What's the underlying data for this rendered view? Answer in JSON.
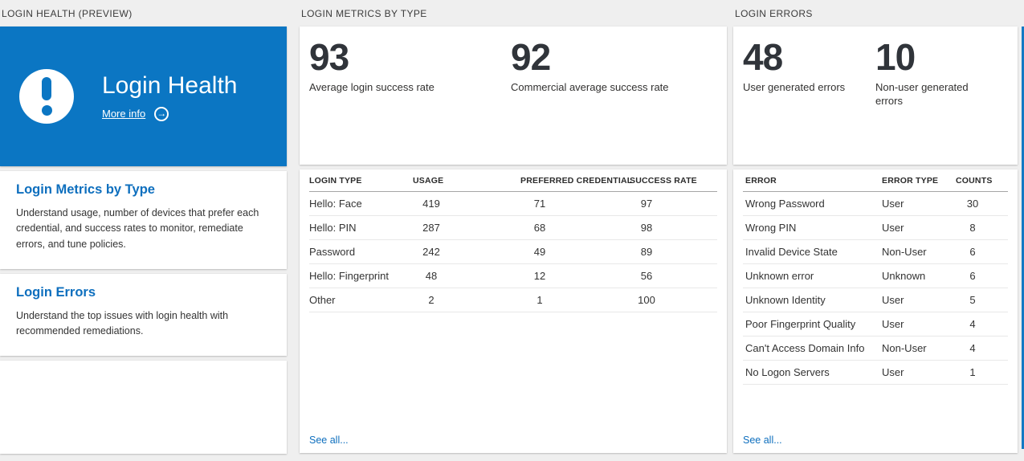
{
  "theme": {
    "accent": "#0b76c3",
    "link_blue": "#0e6fbe",
    "background": "#efefef"
  },
  "login_health_panel": {
    "header": "LOGIN HEALTH (PREVIEW)",
    "hero": {
      "title": "Login Health",
      "more_info_label": "More info",
      "icon": "exclamation-circle-icon"
    },
    "links": [
      {
        "title": "Login Metrics by Type",
        "description": "Understand usage, number of devices that prefer each credential, and success rates to monitor, remediate errors, and tune policies."
      },
      {
        "title": "Login Errors",
        "description": "Understand the top issues with login health with recommended remediations."
      }
    ]
  },
  "metrics_panel": {
    "header": "LOGIN METRICS BY TYPE",
    "stats": [
      {
        "value": "93",
        "label": "Average login success rate"
      },
      {
        "value": "92",
        "label": "Commercial average success rate"
      }
    ],
    "table": {
      "columns": [
        "LOGIN TYPE",
        "USAGE",
        "PREFERRED CREDENTIAL",
        "SUCCESS RATE"
      ],
      "rows": [
        [
          "Hello: Face",
          "419",
          "71",
          "97"
        ],
        [
          "Hello: PIN",
          "287",
          "68",
          "98"
        ],
        [
          "Password",
          "242",
          "49",
          "89"
        ],
        [
          "Hello: Fingerprint",
          "48",
          "12",
          "56"
        ],
        [
          "Other",
          "2",
          "1",
          "100"
        ]
      ]
    },
    "see_all_label": "See all..."
  },
  "errors_panel": {
    "header": "LOGIN ERRORS",
    "stats": [
      {
        "value": "48",
        "label": "User generated errors"
      },
      {
        "value": "10",
        "label": "Non-user generated errors"
      }
    ],
    "table": {
      "columns": [
        "ERROR",
        "ERROR TYPE",
        "COUNTS"
      ],
      "rows": [
        [
          "Wrong Password",
          "User",
          "30"
        ],
        [
          "Wrong PIN",
          "User",
          "8"
        ],
        [
          "Invalid Device State",
          "Non-User",
          "6"
        ],
        [
          "Unknown error",
          "Unknown",
          "6"
        ],
        [
          "Unknown Identity",
          "User",
          "5"
        ],
        [
          "Poor Fingerprint Quality",
          "User",
          "4"
        ],
        [
          "Can't Access Domain Info",
          "Non-User",
          "4"
        ],
        [
          "No Logon Servers",
          "User",
          "1"
        ]
      ]
    },
    "see_all_label": "See all..."
  }
}
